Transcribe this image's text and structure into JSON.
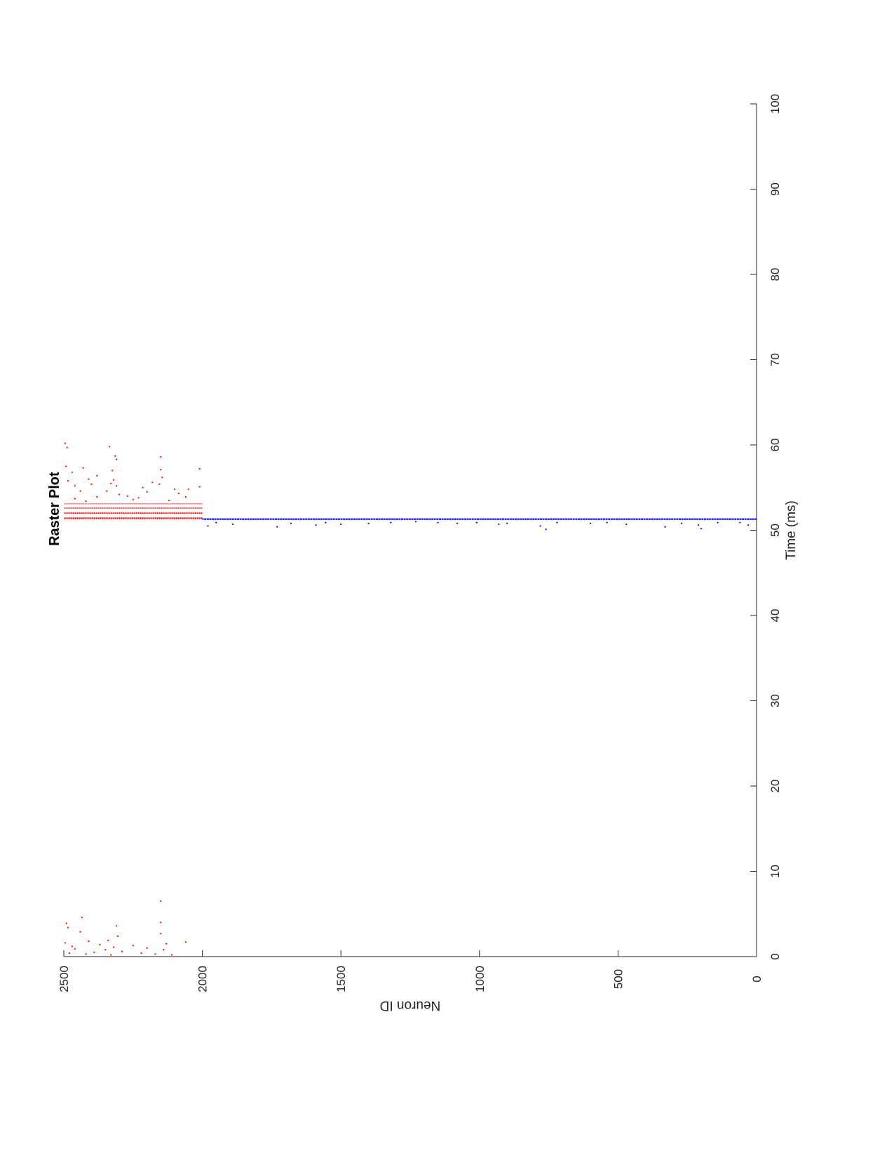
{
  "chart_data": {
    "type": "scatter",
    "title": "Raster Plot",
    "xlabel": "Time (ms)",
    "ylabel": "Neuron ID",
    "xlim": [
      0,
      100
    ],
    "ylim": [
      0,
      2500
    ],
    "xticks": [
      0,
      10,
      20,
      30,
      40,
      50,
      60,
      70,
      80,
      90,
      100
    ],
    "yticks": [
      0,
      500,
      1000,
      1500,
      2000,
      2500
    ],
    "grid": false,
    "legend": "none",
    "orientation": "rotated 90 degrees (page landscape)",
    "series": [
      {
        "color": "#ff0000",
        "neuron_range": [
          2000,
          2500
        ],
        "points": [
          [
            1.6,
            2495
          ],
          [
            3.9,
            2490
          ],
          [
            3.4,
            2485
          ],
          [
            0.4,
            2480
          ],
          [
            1.2,
            2470
          ],
          [
            0.9,
            2460
          ],
          [
            4.6,
            2435
          ],
          [
            2.9,
            2440
          ],
          [
            0.3,
            2420
          ],
          [
            1.8,
            2410
          ],
          [
            0.5,
            2390
          ],
          [
            1.4,
            2370
          ],
          [
            0.8,
            2350
          ],
          [
            1.9,
            2340
          ],
          [
            0.2,
            2330
          ],
          [
            1.1,
            2320
          ],
          [
            3.6,
            2310
          ],
          [
            2.4,
            2305
          ],
          [
            0.6,
            2290
          ],
          [
            1.3,
            2250
          ],
          [
            0.4,
            2220
          ],
          [
            1.0,
            2200
          ],
          [
            0.3,
            2170
          ],
          [
            6.5,
            2150
          ],
          [
            4.0,
            2150
          ],
          [
            2.7,
            2150
          ],
          [
            0.8,
            2140
          ],
          [
            1.5,
            2130
          ],
          [
            0.2,
            2110
          ],
          [
            1.7,
            2060
          ],
          [
            60.2,
            2495
          ],
          [
            59.7,
            2488
          ],
          [
            57.5,
            2492
          ],
          [
            56.8,
            2470
          ],
          [
            55.8,
            2485
          ],
          [
            55.2,
            2460
          ],
          [
            54.6,
            2440
          ],
          [
            57.3,
            2430
          ],
          [
            56.0,
            2410
          ],
          [
            55.4,
            2400
          ],
          [
            56.4,
            2380
          ],
          [
            59.8,
            2335
          ],
          [
            58.7,
            2315
          ],
          [
            58.3,
            2310
          ],
          [
            57.0,
            2325
          ],
          [
            55.9,
            2320
          ],
          [
            55.5,
            2330
          ],
          [
            55.2,
            2310
          ],
          [
            54.6,
            2345
          ],
          [
            54.2,
            2300
          ],
          [
            55.0,
            2215
          ],
          [
            54.5,
            2200
          ],
          [
            55.6,
            2180
          ],
          [
            58.6,
            2150
          ],
          [
            57.1,
            2150
          ],
          [
            56.2,
            2145
          ],
          [
            55.4,
            2155
          ],
          [
            54.8,
            2100
          ],
          [
            54.3,
            2085
          ],
          [
            54.8,
            2050
          ],
          [
            57.2,
            2010
          ],
          [
            55.1,
            2010
          ],
          [
            54.0,
            2270
          ],
          [
            53.6,
            2250
          ],
          [
            53.9,
            2380
          ],
          [
            53.4,
            2420
          ],
          [
            53.7,
            2460
          ],
          [
            53.8,
            2230
          ],
          [
            53.5,
            2120
          ],
          [
            53.9,
            2060
          ]
        ]
      },
      {
        "color": "#0000ff",
        "neuron_range": [
          0,
          2000
        ],
        "points": [
          [
            50.5,
            1980
          ],
          [
            50.9,
            1950
          ],
          [
            50.7,
            1890
          ],
          [
            50.4,
            1730
          ],
          [
            50.8,
            1680
          ],
          [
            50.6,
            1590
          ],
          [
            50.9,
            1555
          ],
          [
            50.7,
            1500
          ],
          [
            50.8,
            1400
          ],
          [
            50.9,
            1320
          ],
          [
            51.0,
            1230
          ],
          [
            50.9,
            1150
          ],
          [
            50.8,
            1080
          ],
          [
            50.9,
            1010
          ],
          [
            50.7,
            930
          ],
          [
            50.8,
            900
          ],
          [
            50.5,
            780
          ],
          [
            50.1,
            760
          ],
          [
            50.9,
            720
          ],
          [
            50.8,
            600
          ],
          [
            50.9,
            540
          ],
          [
            50.7,
            470
          ],
          [
            50.4,
            330
          ],
          [
            50.8,
            270
          ],
          [
            50.2,
            200
          ],
          [
            50.6,
            210
          ],
          [
            50.9,
            140
          ],
          [
            50.6,
            30
          ],
          [
            50.9,
            60
          ]
        ]
      }
    ]
  }
}
